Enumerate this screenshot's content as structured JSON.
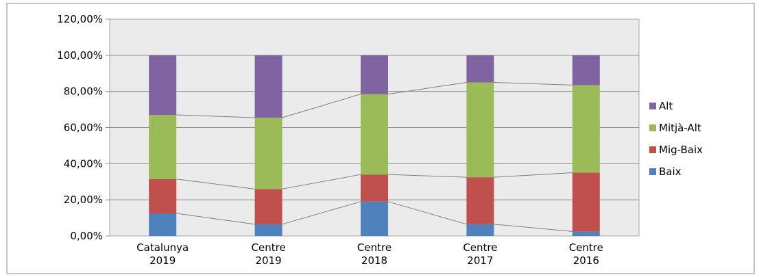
{
  "chart_data": {
    "type": "bar",
    "stacked": true,
    "series_lines": true,
    "title": "",
    "xlabel": "",
    "ylabel": "",
    "ylim": [
      0,
      120
    ],
    "yticks": [
      "0,00%",
      "20,00%",
      "40,00%",
      "60,00%",
      "80,00%",
      "100,00%",
      "120,00%"
    ],
    "categories": [
      [
        "Catalunya",
        "2019"
      ],
      [
        "Centre",
        "2019"
      ],
      [
        "Centre",
        "2018"
      ],
      [
        "Centre",
        "2017"
      ],
      [
        "Centre",
        "2016"
      ]
    ],
    "series": [
      {
        "name": "Baix",
        "color": "#4F81BD",
        "values": [
          12.5,
          6.5,
          19.0,
          6.5,
          2.5
        ]
      },
      {
        "name": "Mig-Baix",
        "color": "#C0504D",
        "values": [
          19.0,
          19.5,
          15.0,
          26.0,
          32.5
        ]
      },
      {
        "name": "Mitjà-Alt",
        "color": "#9BBB59",
        "values": [
          35.5,
          39.5,
          44.5,
          52.5,
          48.5
        ]
      },
      {
        "name": "Alt",
        "color": "#8064A2",
        "values": [
          33.0,
          34.5,
          21.5,
          15.0,
          16.5
        ]
      }
    ],
    "legend_position": "right",
    "legend_order": [
      "Alt",
      "Mitjà-Alt",
      "Mig-Baix",
      "Baix"
    ],
    "grid": "horizontal",
    "plot_background": "#EBEBEB"
  }
}
